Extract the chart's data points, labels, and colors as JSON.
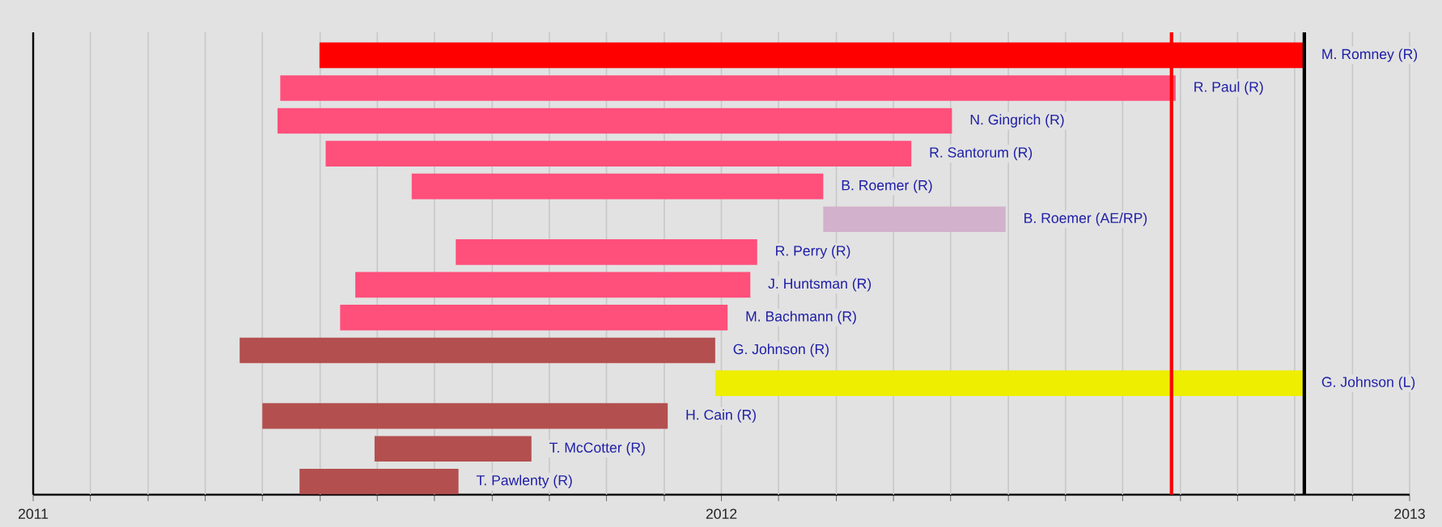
{
  "chart_data": {
    "type": "bar",
    "orientation": "horizontal",
    "categories": [
      "M. Romney (R)",
      "R. Paul (R)",
      "N. Gingrich (R)",
      "R. Santorum (R)",
      "B. Roemer (R)",
      "B. Roemer (AE/RP)",
      "R. Perry (R)",
      "J. Huntsman (R)",
      "M. Bachmann (R)",
      "G. Johnson (R)",
      "G. Johnson (L)",
      "H. Cain (R)",
      "T. McCotter (R)",
      "T. Pawlenty (R)"
    ],
    "base": [
      2011.416,
      2011.359,
      2011.355,
      2011.425,
      2011.55,
      2012.148,
      2011.614,
      2011.468,
      2011.446,
      2011.3,
      2011.991,
      2011.333,
      2011.496,
      2011.387
    ],
    "values": [
      1.43,
      1.301,
      0.98,
      0.851,
      0.598,
      0.265,
      0.438,
      0.574,
      0.563,
      0.691,
      0.855,
      0.589,
      0.228,
      0.231
    ],
    "colors": [
      "#ff0000",
      "#ff4f7b",
      "#ff4f7b",
      "#ff4f7b",
      "#ff4f7b",
      "#d2b1cc",
      "#ff4f7b",
      "#ff4f7b",
      "#ff4f7b",
      "#b34f4f",
      "#eeee00",
      "#b34f4f",
      "#b34f4f",
      "#b34f4f"
    ],
    "xlim": [
      2011,
      2013
    ],
    "xticks": [
      2011,
      {
        "value": 2011.083,
        "label": null
      },
      {
        "value": 2011.167,
        "label": null
      },
      {
        "value": 2011.25,
        "label": null
      },
      {
        "value": 2011.333,
        "label": null
      },
      {
        "value": 2011.417,
        "label": null
      },
      {
        "value": 2011.5,
        "label": null
      },
      {
        "value": 2011.583,
        "label": null
      },
      {
        "value": 2011.667,
        "label": null
      },
      {
        "value": 2011.75,
        "label": null
      },
      {
        "value": 2011.833,
        "label": null
      },
      {
        "value": 2011.917,
        "label": null
      },
      2012,
      {
        "value": 2012.083,
        "label": null
      },
      {
        "value": 2012.167,
        "label": null
      },
      {
        "value": 2012.25,
        "label": null
      },
      {
        "value": 2012.333,
        "label": null
      },
      {
        "value": 2012.417,
        "label": null
      },
      {
        "value": 2012.5,
        "label": null
      },
      {
        "value": 2012.583,
        "label": null
      },
      {
        "value": 2012.667,
        "label": null
      },
      {
        "value": 2012.75,
        "label": null
      },
      {
        "value": 2012.833,
        "label": null
      },
      {
        "value": 2012.917,
        "label": null
      },
      2013
    ],
    "ref_lines": [
      {
        "axis": "x",
        "value": 2012.654,
        "color": "#ff0000"
      },
      {
        "axis": "x",
        "value": 2012.847,
        "color": "#000000"
      }
    ],
    "grid": "x",
    "tick_labels": "x"
  }
}
